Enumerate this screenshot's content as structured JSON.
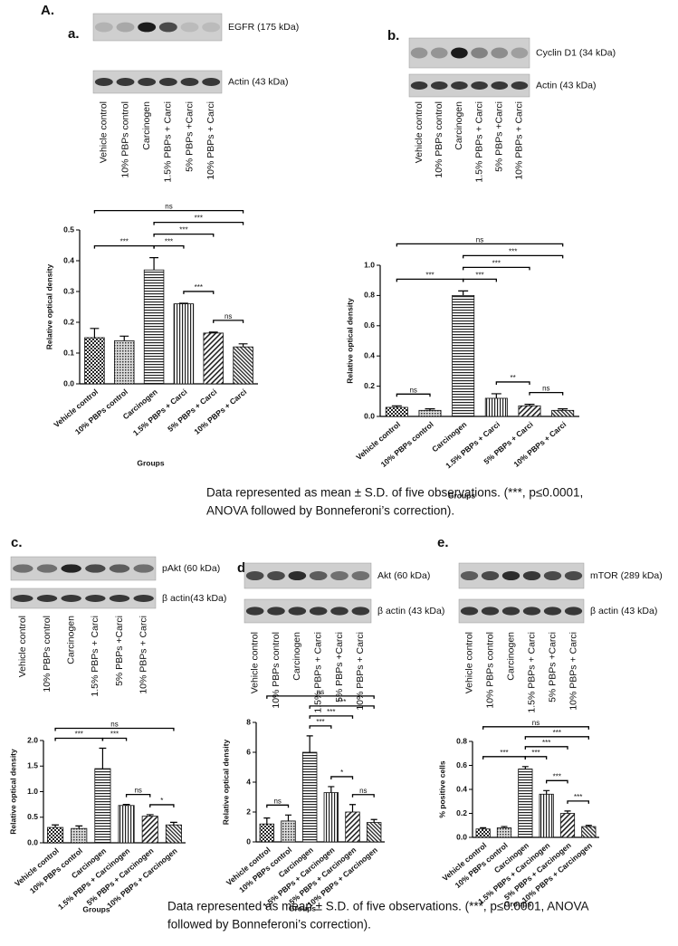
{
  "figure_label": "A.",
  "blots": [
    {
      "panel": "a.",
      "bands": [
        "EGFR (175 kDa)",
        "Actin (43 kDa)"
      ],
      "lanes": [
        "Vehicle control",
        "10% PBPs control",
        "Carcinogen",
        "1.5% PBPs + Carci",
        "5% PBPs +Carci",
        "10% PBPs + Carci"
      ]
    },
    {
      "panel": "b.",
      "bands": [
        "Cyclin D1 (34 kDa)",
        "Actin (43 kDa)"
      ],
      "lanes": [
        "Vehicle control",
        "10% PBPs control",
        "Carcinogen",
        "1.5% PBPs + Carci",
        "5% PBPs +Carci",
        "10% PBPs + Carci"
      ]
    },
    {
      "panel": "c.",
      "bands": [
        "pAkt (60 kDa)",
        "β actin(43 kDa)"
      ],
      "lanes": [
        "Vehicle control",
        "10% PBPs control",
        "Carcinogen",
        "1.5% PBPs + Carci",
        "5% PBPs +Carci",
        "10% PBPs + Carci"
      ]
    },
    {
      "panel": "d.",
      "bands": [
        "Akt  (60 kDa)",
        "β actin (43 kDa)"
      ],
      "lanes": [
        "Vehicle control",
        "10% PBPs control",
        "Carcinogen",
        "1.5% PBPs + Carci",
        "5% PBPs +Carci",
        "10% PBPs + Carci"
      ]
    },
    {
      "panel": "e.",
      "bands": [
        "mTOR (289 kDa)",
        "β actin (43 kDa)"
      ],
      "lanes": [
        "Vehicle control",
        "10% PBPs control",
        "Carcinogen",
        "1.5% PBPs + Carci",
        "5% PBPs +Carci",
        "10% PBPs + Carci"
      ]
    }
  ],
  "chart_data": [
    {
      "type": "bar",
      "ylabel": "Relative optical density",
      "xlabel": "Groups",
      "categories": [
        "Vehicle control",
        "10% PBPs control",
        "Carcinogen",
        "1.5% PBPs + Carci",
        "5% PBPs + Carci",
        "10% PBPs + Carci"
      ],
      "values": [
        0.15,
        0.14,
        0.37,
        0.26,
        0.165,
        0.12
      ],
      "errors": [
        0.03,
        0.015,
        0.04,
        0.002,
        0.003,
        0.01
      ],
      "ylim": [
        0,
        0.5
      ],
      "yticks": [
        {
          "value": 0,
          "label": "0.0"
        },
        0.1,
        0.2,
        0.3,
        0.4,
        0.5
      ],
      "comparisons": [
        {
          "label": "***",
          "groups": [
            0,
            2
          ]
        },
        {
          "label": "***",
          "groups": [
            2,
            3
          ]
        },
        {
          "label": "***",
          "groups": [
            3,
            4
          ]
        },
        {
          "label": "ns",
          "groups": [
            4,
            5
          ]
        },
        {
          "label": "***",
          "groups": [
            2,
            4
          ]
        },
        {
          "label": "***",
          "groups": [
            2,
            5
          ]
        },
        {
          "label": "ns",
          "groups": [
            0,
            5
          ]
        }
      ]
    },
    {
      "type": "bar",
      "ylabel": "Relative optical density",
      "xlabel": "Groups",
      "categories": [
        "Vehicle control",
        "10% PBPs control",
        "Carcinogen",
        "1.5% PBPs + Carci",
        "5% PBPs + Carci",
        "10% PBPs + Carci"
      ],
      "values": [
        0.06,
        0.04,
        0.8,
        0.12,
        0.07,
        0.04
      ],
      "errors": [
        0.01,
        0.01,
        0.03,
        0.03,
        0.01,
        0.01
      ],
      "ylim": [
        0,
        1.0
      ],
      "yticks": [
        {
          "value": 0,
          "label": "0.0"
        },
        0.2,
        0.4,
        0.6,
        0.8,
        {
          "value": 1,
          "label": "1.0"
        }
      ],
      "comparisons": [
        {
          "label": "ns",
          "groups": [
            0,
            1
          ]
        },
        {
          "label": "***",
          "groups": [
            0,
            2
          ]
        },
        {
          "label": "***",
          "groups": [
            2,
            3
          ]
        },
        {
          "label": "**",
          "groups": [
            3,
            4
          ]
        },
        {
          "label": "ns",
          "groups": [
            4,
            5
          ]
        },
        {
          "label": "***",
          "groups": [
            2,
            4
          ]
        },
        {
          "label": "***",
          "groups": [
            2,
            5
          ]
        },
        {
          "label": "ns",
          "groups": [
            0,
            5
          ]
        }
      ]
    },
    {
      "type": "bar",
      "ylabel": "Relative optical density",
      "xlabel": "Groups",
      "categories": [
        "Vehicle control",
        "10% PBPs control",
        "Carcinogen",
        "1.5% PBPs + Carcinogen",
        "5% PBPs + Carcinogen",
        "10% PBPs + Carcinogen"
      ],
      "values": [
        0.3,
        0.28,
        1.45,
        0.73,
        0.52,
        0.35
      ],
      "errors": [
        0.05,
        0.05,
        0.4,
        0.02,
        0.03,
        0.05
      ],
      "ylim": [
        0,
        2.0
      ],
      "yticks": [
        {
          "value": 0,
          "label": "0.0"
        },
        0.5,
        {
          "value": 1,
          "label": "1.0"
        },
        1.5,
        {
          "value": 2,
          "label": "2.0"
        }
      ],
      "comparisons": [
        {
          "label": "***",
          "groups": [
            0,
            2
          ]
        },
        {
          "label": "***",
          "groups": [
            2,
            3
          ]
        },
        {
          "label": "ns",
          "groups": [
            3,
            4
          ]
        },
        {
          "label": "*",
          "groups": [
            4,
            5
          ]
        },
        {
          "label": "ns",
          "groups": [
            0,
            5
          ]
        }
      ]
    },
    {
      "type": "bar",
      "ylabel": "Relative optical density",
      "xlabel": "Groups",
      "categories": [
        "Vehicle control",
        "10% PBPs control",
        "Carcinogen",
        "1.5% PBPs + Carcinogen",
        "5% PBPs + Carcinogen",
        "10% PBPs + Carcinogen"
      ],
      "values": [
        1.2,
        1.4,
        6.0,
        3.3,
        2.0,
        1.3
      ],
      "errors": [
        0.4,
        0.4,
        1.1,
        0.4,
        0.5,
        0.2
      ],
      "ylim": [
        0,
        8
      ],
      "yticks": [
        0,
        2,
        4,
        6,
        8
      ],
      "comparisons": [
        {
          "label": "ns",
          "groups": [
            0,
            1
          ]
        },
        {
          "label": "***",
          "groups": [
            2,
            3
          ]
        },
        {
          "label": "*",
          "groups": [
            3,
            4
          ]
        },
        {
          "label": "ns",
          "groups": [
            4,
            5
          ]
        },
        {
          "label": "***",
          "groups": [
            2,
            4
          ]
        },
        {
          "label": "***",
          "groups": [
            2,
            5
          ]
        },
        {
          "label": "ns",
          "groups": [
            0,
            5
          ]
        }
      ]
    },
    {
      "type": "bar",
      "ylabel": "% positive cells",
      "xlabel": "Groups",
      "categories": [
        "Vehicle control",
        "10% PBPs control",
        "Carcinogen",
        "1.5% PBPs + Carcinogen",
        "5% PBPs + Carcinogen",
        "10% PBPs + Carcinogen"
      ],
      "values": [
        0.07,
        0.08,
        0.57,
        0.36,
        0.2,
        0.09
      ],
      "errors": [
        0.01,
        0.01,
        0.02,
        0.03,
        0.02,
        0.01
      ],
      "ylim": [
        0,
        0.8
      ],
      "yticks": [
        {
          "value": 0,
          "label": "0.0"
        },
        0.2,
        0.4,
        0.6,
        0.8
      ],
      "comparisons": [
        {
          "label": "***",
          "groups": [
            0,
            2
          ]
        },
        {
          "label": "***",
          "groups": [
            2,
            3
          ]
        },
        {
          "label": "***",
          "groups": [
            3,
            4
          ]
        },
        {
          "label": "***",
          "groups": [
            4,
            5
          ]
        },
        {
          "label": "***",
          "groups": [
            2,
            4
          ]
        },
        {
          "label": "***",
          "groups": [
            2,
            5
          ]
        },
        {
          "label": "ns",
          "groups": [
            0,
            5
          ]
        }
      ]
    }
  ],
  "captions": [
    [
      "Data represented as mean ± S.D. of five observations. (***, p≤0.0001,",
      "ANOVA followed by Bonneferoni’s correction)."
    ],
    [
      "Data represented as mean ± S.D. of five observations. (***, p≤0.0001, ANOVA",
      "followed by Bonneferoni’s correction)."
    ]
  ]
}
